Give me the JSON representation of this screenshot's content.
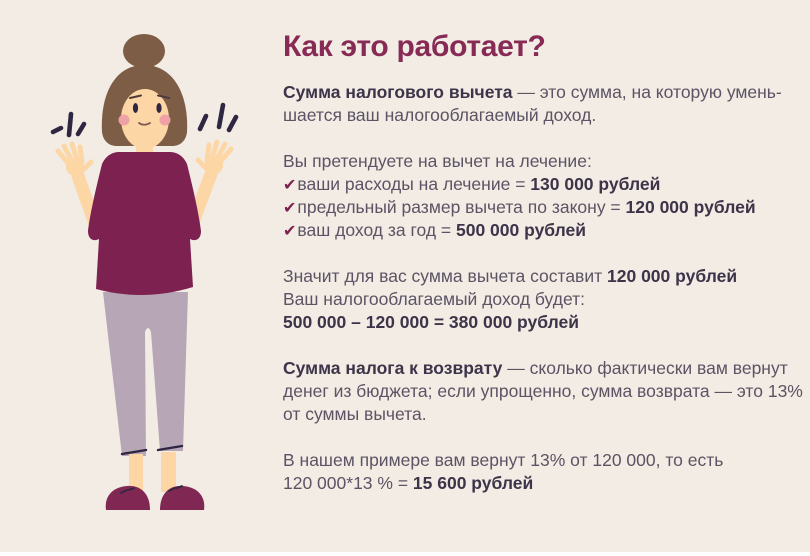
{
  "title": "Как это работает?",
  "colors": {
    "background": "#f2ece4",
    "title": "#872a55",
    "body": "#5c5364",
    "bold": "#3d3449",
    "accent": "#7d2150",
    "skin": "#fcd6a5",
    "hair": "#7d5d45",
    "shirt": "#7d2150",
    "pants": "#b7a6b6",
    "cheeks": "#efa2a5",
    "slippers": "#802853",
    "ink": "#2f2742",
    "brow": "#4f3a40",
    "mouth": "#7d5a50"
  },
  "illustration": {
    "alt": "woman-shrugging"
  },
  "content": {
    "check_glyph": "✔",
    "rows": [
      {
        "segments": [
          {
            "text": "Сумма налогового вычета",
            "style": "bold"
          },
          {
            "text": " — это сумма, на которую умень-",
            "style": "normal"
          }
        ]
      },
      {
        "segments": [
          {
            "text": "шается ваш налогооблагаемый доход.",
            "style": "normal"
          }
        ]
      },
      {
        "blank": true
      },
      {
        "segments": [
          {
            "text": "Вы претендуете на вычет на лечение:",
            "style": "normal"
          }
        ]
      },
      {
        "check": true,
        "segments": [
          {
            "text": "ваши расходы на лечение = ",
            "style": "normal"
          },
          {
            "text": "130 000 рублей",
            "style": "bold"
          }
        ]
      },
      {
        "check": true,
        "segments": [
          {
            "text": "предельный размер вычета по закону = ",
            "style": "normal"
          },
          {
            "text": "120 000 рублей",
            "style": "bold"
          }
        ]
      },
      {
        "check": true,
        "segments": [
          {
            "text": "ваш доход за год = ",
            "style": "normal"
          },
          {
            "text": "500 000 рублей",
            "style": "bold"
          }
        ]
      },
      {
        "blank": true
      },
      {
        "segments": [
          {
            "text": "Значит для вас сумма вычета составит ",
            "style": "normal"
          },
          {
            "text": "120 000 рублей",
            "style": "bold"
          }
        ]
      },
      {
        "segments": [
          {
            "text": "Ваш налогооблагаемый доход будет:",
            "style": "normal"
          }
        ]
      },
      {
        "segments": [
          {
            "text": "500 000 – 120 000 = 380 000 рублей",
            "style": "bold"
          }
        ]
      },
      {
        "blank": true
      },
      {
        "segments": [
          {
            "text": "Сумма налога к возврату",
            "style": "bold"
          },
          {
            "text": " — сколько фактически вам вернут",
            "style": "normal"
          }
        ]
      },
      {
        "segments": [
          {
            "text": "денег из бюджета; если упрощенно, сумма возврата — это 13%",
            "style": "normal"
          }
        ]
      },
      {
        "segments": [
          {
            "text": "от суммы вычета.",
            "style": "normal"
          }
        ]
      },
      {
        "blank": true
      },
      {
        "segments": [
          {
            "text": "В нашем примере вам вернут 13% от 120 000, то есть",
            "style": "normal"
          }
        ]
      },
      {
        "segments": [
          {
            "text": "120 000*13 % = ",
            "style": "normal"
          },
          {
            "text": "15 600 рублей",
            "style": "bold"
          }
        ]
      }
    ]
  }
}
